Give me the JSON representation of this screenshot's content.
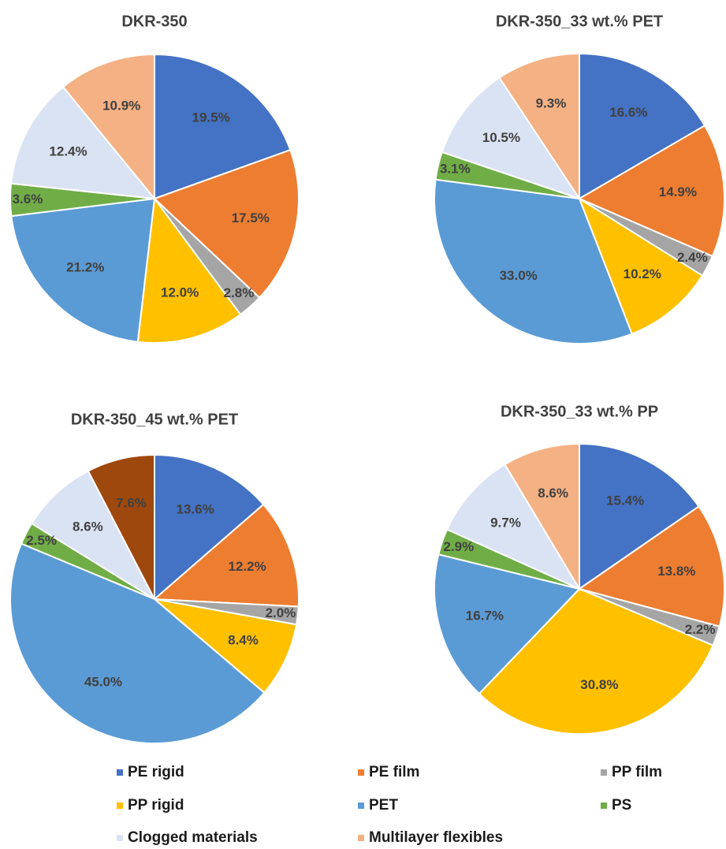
{
  "chart_data": [
    {
      "type": "pie",
      "title": "DKR-350",
      "values": [
        19.5,
        17.5,
        2.8,
        12.0,
        21.2,
        3.6,
        12.4,
        10.9
      ],
      "value_labels": [
        "19.5%",
        "17.5%",
        "2.8%",
        "12.0%",
        "21.2%",
        "3.6%",
        "12.4%",
        "10.9%"
      ],
      "colors": [
        "#4472c4",
        "#ed7d31",
        "#a5a5a5",
        "#ffc000",
        "#5b9bd5",
        "#70ad47",
        "#dae3f3",
        "#f4b183"
      ]
    },
    {
      "type": "pie",
      "title": "DKR-350_33 wt.% PET",
      "values": [
        16.6,
        14.9,
        2.4,
        10.2,
        33.0,
        3.1,
        10.5,
        9.3
      ],
      "value_labels": [
        "16.6%",
        "14.9%",
        "2.4%",
        "10.2%",
        "33.0%",
        "3.1%",
        "10.5%",
        "9.3%"
      ],
      "colors": [
        "#4472c4",
        "#ed7d31",
        "#a5a5a5",
        "#ffc000",
        "#5b9bd5",
        "#70ad47",
        "#dae3f3",
        "#f4b183"
      ]
    },
    {
      "type": "pie",
      "title": "DKR-350_45 wt.% PET",
      "values": [
        13.6,
        12.2,
        2.0,
        8.4,
        45.0,
        2.5,
        8.6,
        7.6
      ],
      "value_labels": [
        "13.6%",
        "12.2%",
        "2.0%",
        "8.4%",
        "45.0%",
        "2.5%",
        "8.6%",
        "7.6%"
      ],
      "colors": [
        "#4472c4",
        "#ed7d31",
        "#a5a5a5",
        "#ffc000",
        "#5b9bd5",
        "#70ad47",
        "#dae3f3",
        "#9e480e"
      ]
    },
    {
      "type": "pie",
      "title": "DKR-350_33 wt.% PP",
      "values": [
        15.4,
        13.8,
        2.2,
        30.8,
        16.7,
        2.9,
        9.7,
        8.6
      ],
      "value_labels": [
        "15.4%",
        "13.8%",
        "2.2%",
        "30.8%",
        "16.7%",
        "2.9%",
        "9.7%",
        "8.6%"
      ],
      "colors": [
        "#4472c4",
        "#ed7d31",
        "#a5a5a5",
        "#ffc000",
        "#5b9bd5",
        "#70ad47",
        "#dae3f3",
        "#f4b183"
      ]
    }
  ],
  "legend": [
    {
      "name": "PE rigid",
      "color": "#4472c4"
    },
    {
      "name": "PE film",
      "color": "#ed7d31"
    },
    {
      "name": "PP film",
      "color": "#a5a5a5"
    },
    {
      "name": "PP rigid",
      "color": "#ffc000"
    },
    {
      "name": "PET",
      "color": "#5b9bd5"
    },
    {
      "name": "PS",
      "color": "#70ad47"
    },
    {
      "name": "Clogged materials",
      "color": "#dae3f3"
    },
    {
      "name": "Multilayer flexibles",
      "color": "#f4b183"
    }
  ]
}
